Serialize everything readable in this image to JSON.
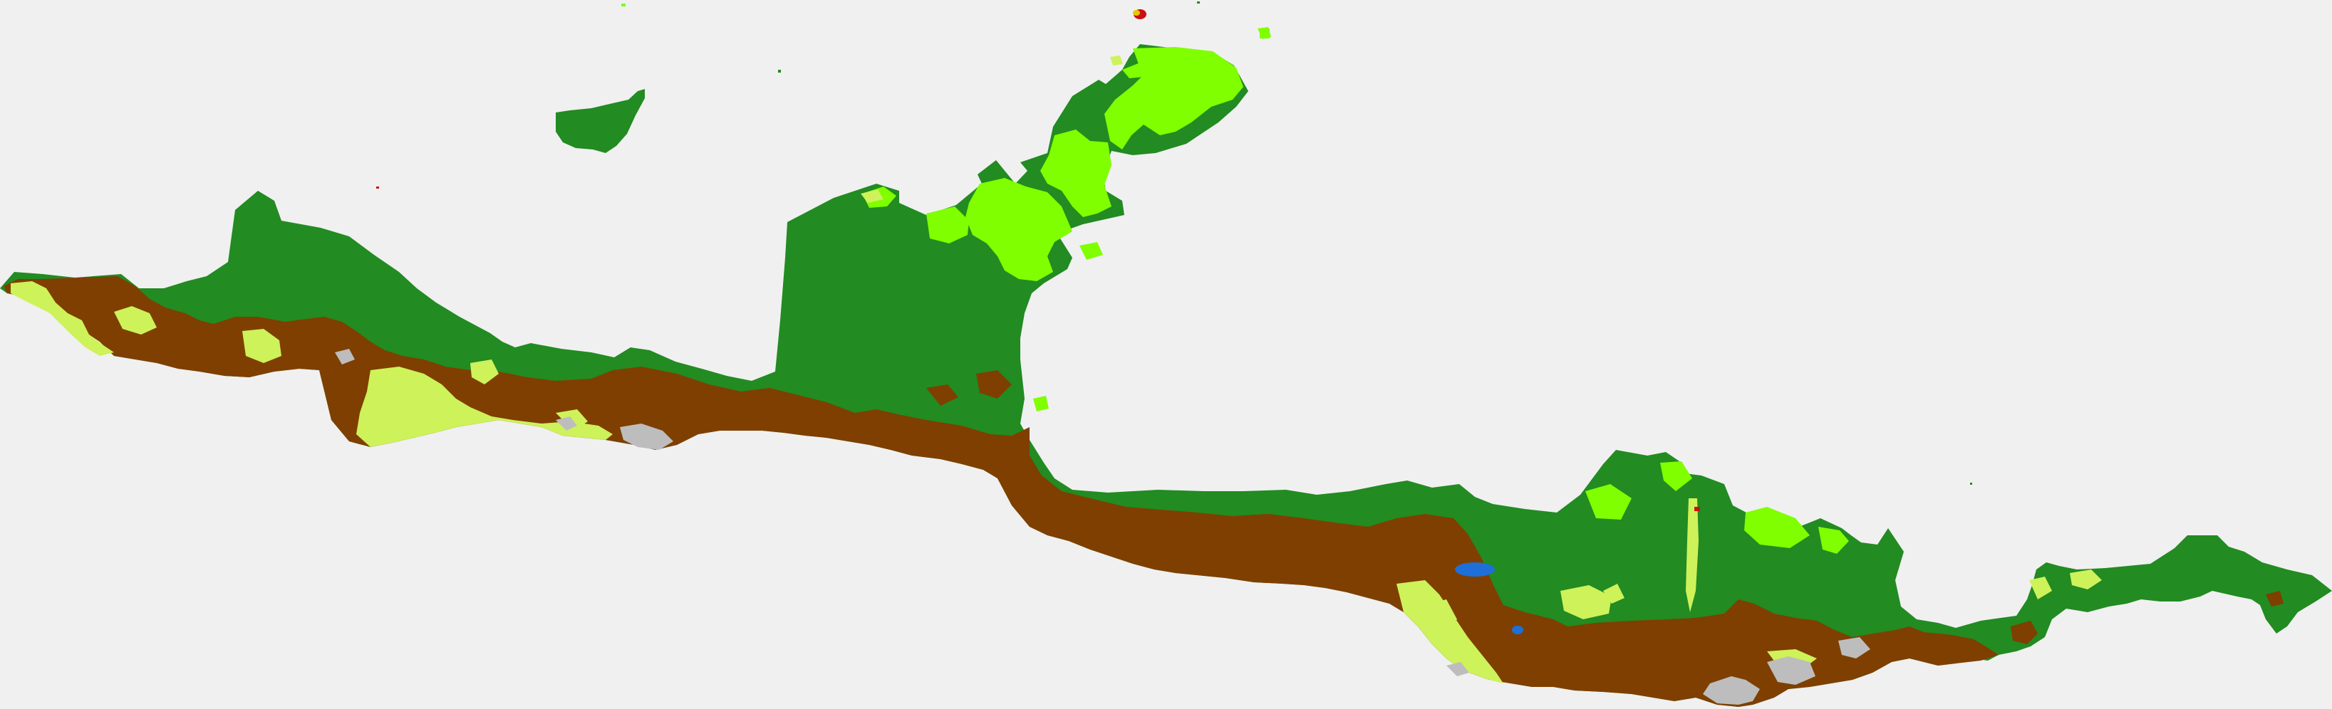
{
  "map": {
    "background": "#f0f0f0",
    "classes": [
      {
        "id": "forest",
        "color": "#228b22"
      },
      {
        "id": "shrubland",
        "color": "#7fff00"
      },
      {
        "id": "grassland",
        "color": "#cef25a"
      },
      {
        "id": "cropland",
        "color": "#7f3f00"
      },
      {
        "id": "bare",
        "color": "#bdbdbd"
      },
      {
        "id": "water",
        "color": "#1e6fd8"
      },
      {
        "id": "urban",
        "color": "#cc1010"
      },
      {
        "id": "wetland",
        "color": "#e6c800"
      }
    ]
  }
}
